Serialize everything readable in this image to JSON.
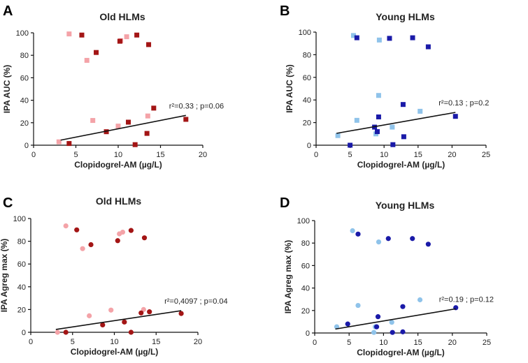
{
  "chart_data": [
    {
      "panel": "A",
      "type": "scatter",
      "title": "Old HLMs",
      "xlabel": "Clopidogrel-AM (µg/L)",
      "ylabel": "IPA AUC (%)",
      "xlim": [
        0,
        20
      ],
      "ylim": [
        0,
        100
      ],
      "xticks": [
        0,
        5,
        10,
        15,
        20
      ],
      "yticks": [
        0,
        20,
        40,
        60,
        80,
        100
      ],
      "marker": "square",
      "annotation": "r²=0.33 ; p=0.06",
      "regression": {
        "x1": 3.2,
        "y1": 4.5,
        "x2": 18.0,
        "y2": 26.5
      },
      "series": [
        {
          "name": "light",
          "color": "#F4A3A8",
          "points": [
            [
              4.2,
              99
            ],
            [
              6.3,
              75.5
            ],
            [
              7.0,
              22
            ],
            [
              10.0,
              17
            ],
            [
              10.3,
              93
            ],
            [
              11.0,
              96.5
            ],
            [
              13.5,
              26
            ],
            [
              3.0,
              3
            ]
          ]
        },
        {
          "name": "dark",
          "color": "#A31515",
          "points": [
            [
              5.7,
              98
            ],
            [
              7.4,
              82.5
            ],
            [
              10.2,
              92.5
            ],
            [
              12.2,
              98
            ],
            [
              13.6,
              89.5
            ],
            [
              14.2,
              33
            ],
            [
              8.6,
              12
            ],
            [
              11.2,
              20.5
            ],
            [
              13.4,
              10.5
            ],
            [
              18.0,
              23
            ],
            [
              4.2,
              1.5
            ],
            [
              12.0,
              0.5
            ]
          ]
        }
      ]
    },
    {
      "panel": "B",
      "type": "scatter",
      "title": "Young HLMs",
      "xlabel": "Clopidogrel-AM (µg/L)",
      "ylabel": "IPA AUC (%)",
      "xlim": [
        0,
        25
      ],
      "ylim": [
        0,
        100
      ],
      "xticks": [
        0,
        5,
        10,
        15,
        20,
        25
      ],
      "yticks": [
        0,
        20,
        40,
        60,
        80,
        100
      ],
      "marker": "square",
      "annotation": "r²=0.13 ; p=0.2",
      "regression": {
        "x1": 3.0,
        "y1": 10.5,
        "x2": 20.5,
        "y2": 29
      },
      "series": [
        {
          "name": "light",
          "color": "#8FC3EA",
          "points": [
            [
              5.5,
              97
            ],
            [
              9.3,
              93
            ],
            [
              9.2,
              44
            ],
            [
              6.0,
              22
            ],
            [
              11.2,
              16
            ],
            [
              15.3,
              30
            ],
            [
              3.2,
              8.5
            ],
            [
              8.8,
              10
            ]
          ]
        },
        {
          "name": "dark",
          "color": "#1A1AA8",
          "points": [
            [
              6.0,
              95
            ],
            [
              10.8,
              94.5
            ],
            [
              14.2,
              95
            ],
            [
              16.5,
              87
            ],
            [
              9.2,
              25
            ],
            [
              12.8,
              36
            ],
            [
              8.6,
              16
            ],
            [
              9.0,
              12
            ],
            [
              12.9,
              7.5
            ],
            [
              11.3,
              0.5
            ],
            [
              5.0,
              0
            ],
            [
              20.5,
              25.5
            ]
          ]
        }
      ]
    },
    {
      "panel": "C",
      "type": "scatter",
      "title": "Old HLMs",
      "xlabel": "Clopidogrel-AM (µg/L)",
      "ylabel": "IPA Agreg max (%)",
      "xlim": [
        0,
        20
      ],
      "ylim": [
        0,
        100
      ],
      "xticks": [
        0,
        5,
        10,
        15,
        20
      ],
      "yticks": [
        0,
        20,
        40,
        60,
        80,
        100
      ],
      "marker": "circle",
      "annotation": "r²=0,4097 ; p=0.04",
      "regression": {
        "x1": 3.0,
        "y1": 2.5,
        "x2": 18.0,
        "y2": 19
      },
      "series": [
        {
          "name": "light",
          "color": "#F4A3A8",
          "points": [
            [
              4.2,
              93.5
            ],
            [
              6.2,
              73.5
            ],
            [
              7.0,
              14.5
            ],
            [
              9.6,
              19.5
            ],
            [
              10.6,
              86.5
            ],
            [
              11.0,
              88
            ],
            [
              13.5,
              20
            ],
            [
              3.2,
              0
            ]
          ]
        },
        {
          "name": "dark",
          "color": "#A31515",
          "points": [
            [
              5.5,
              90
            ],
            [
              7.2,
              77
            ],
            [
              10.4,
              80.5
            ],
            [
              12.0,
              89.5
            ],
            [
              13.6,
              83
            ],
            [
              8.6,
              6.5
            ],
            [
              11.2,
              9
            ],
            [
              13.2,
              17
            ],
            [
              14.2,
              18
            ],
            [
              18.0,
              16.5
            ],
            [
              4.2,
              0
            ],
            [
              12.0,
              0
            ]
          ]
        }
      ]
    },
    {
      "panel": "D",
      "type": "scatter",
      "title": "Young HLMs",
      "xlabel": "Clopidogrel-AM (µg/L)",
      "ylabel": "IPA Agreg max (%)",
      "xlim": [
        0,
        25
      ],
      "ylim": [
        0,
        100
      ],
      "xticks": [
        0,
        5,
        10,
        15,
        20,
        25
      ],
      "yticks": [
        0,
        20,
        40,
        60,
        80,
        100
      ],
      "marker": "circle",
      "annotation": "r²=0.19 ; p=0.12",
      "regression": {
        "x1": 3.0,
        "y1": 3.5,
        "x2": 20.5,
        "y2": 21.5
      },
      "series": [
        {
          "name": "light",
          "color": "#8FC3EA",
          "points": [
            [
              5.5,
              91
            ],
            [
              9.3,
              81
            ],
            [
              6.3,
              24.5
            ],
            [
              11.2,
              9.5
            ],
            [
              15.3,
              29.5
            ],
            [
              3.2,
              5.5
            ],
            [
              8.8,
              5.5
            ],
            [
              8.6,
              0.5
            ]
          ]
        },
        {
          "name": "dark",
          "color": "#1A1AA8",
          "points": [
            [
              6.3,
              88
            ],
            [
              10.7,
              84
            ],
            [
              14.2,
              84
            ],
            [
              16.5,
              79
            ],
            [
              9.2,
              14.5
            ],
            [
              12.8,
              23.5
            ],
            [
              4.8,
              8
            ],
            [
              9.0,
              5.5
            ],
            [
              12.8,
              1
            ],
            [
              11.3,
              0.5
            ],
            [
              20.5,
              22.5
            ]
          ]
        }
      ]
    }
  ]
}
